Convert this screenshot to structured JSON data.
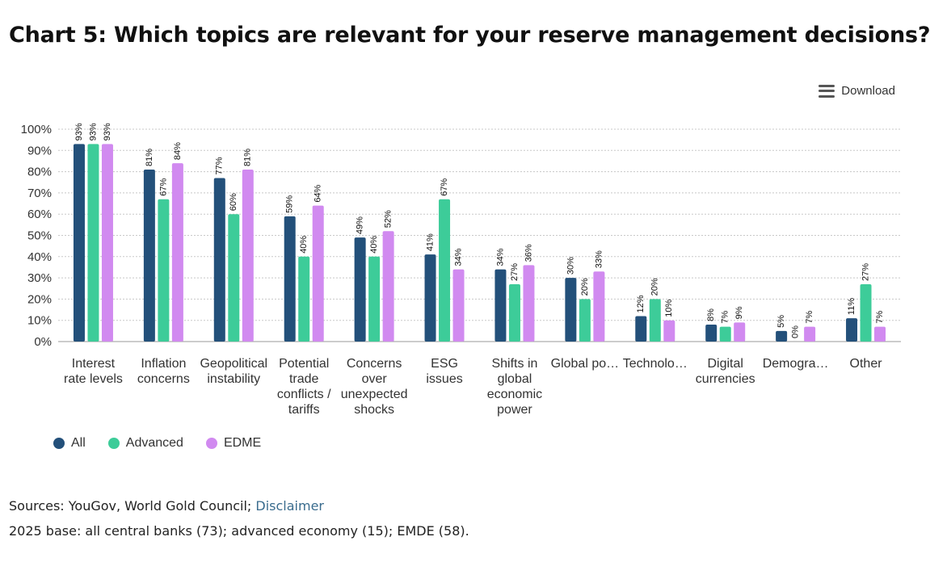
{
  "title": "Chart 5: Which topics are relevant for your reserve management decisions?",
  "download_label": "Download",
  "colors": {
    "All": "#23507a",
    "Advanced": "#3dcc99",
    "EDME": "#d18af0",
    "grid": "#c8c8c8"
  },
  "chart_data": {
    "type": "bar",
    "title": "Chart 5: Which topics are relevant for your reserve management decisions?",
    "ylim": [
      0,
      100
    ],
    "yticks": [
      "0%",
      "10%",
      "20%",
      "30%",
      "40%",
      "50%",
      "60%",
      "70%",
      "80%",
      "90%",
      "100%"
    ],
    "categories": [
      [
        "Interest",
        "rate levels"
      ],
      [
        "Inflation",
        "concerns"
      ],
      [
        "Geopolitical",
        "instability"
      ],
      [
        "Potential",
        "trade",
        "conflicts /",
        "tariffs"
      ],
      [
        "Concerns",
        "over",
        "unexpected",
        "shocks"
      ],
      [
        "ESG",
        "issues"
      ],
      [
        "Shifts in",
        "global",
        "economic",
        "power"
      ],
      [
        "Global po…"
      ],
      [
        "Technolo…"
      ],
      [
        "Digital",
        "currencies"
      ],
      [
        "Demogra…"
      ],
      [
        "Other"
      ]
    ],
    "series": [
      {
        "name": "All",
        "values": [
          93,
          81,
          77,
          59,
          49,
          41,
          34,
          30,
          12,
          8,
          5,
          11
        ]
      },
      {
        "name": "Advanced",
        "values": [
          93,
          67,
          60,
          40,
          40,
          67,
          27,
          20,
          20,
          7,
          0,
          27
        ]
      },
      {
        "name": "EDME",
        "values": [
          93,
          84,
          81,
          64,
          52,
          34,
          36,
          33,
          10,
          9,
          7,
          7
        ]
      }
    ],
    "legend": [
      "All",
      "Advanced",
      "EDME"
    ],
    "legend_position": "bottom-left",
    "grid": true
  },
  "footer": {
    "sources_prefix": "Sources: YouGov, World Gold Council; ",
    "disclaimer_link": "Disclaimer",
    "base": "2025 base: all central banks (73); advanced economy (15); EMDE (58)."
  }
}
